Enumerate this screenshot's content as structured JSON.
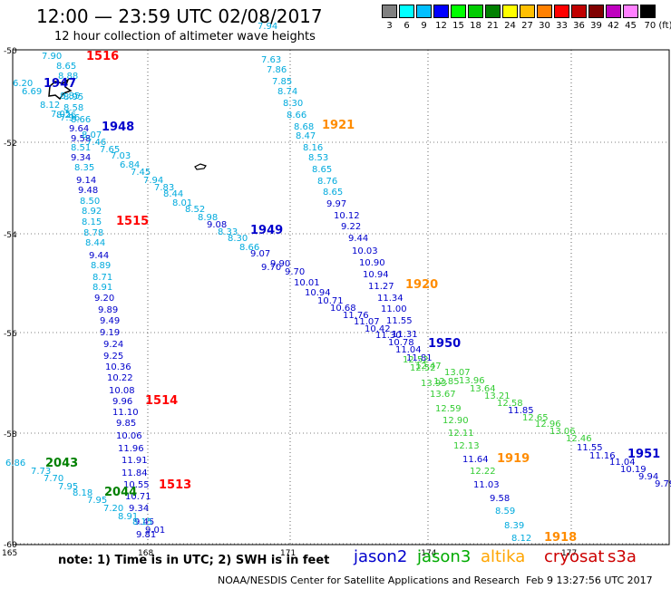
{
  "header": {
    "title": "12:00  — 23:59 UTC 02/08/2017",
    "subtitle": "12 hour collection of altimeter wave heights"
  },
  "colorbar": {
    "colors": [
      "#808080",
      "#00ffff",
      "#00bfff",
      "#0000ff",
      "#00ff00",
      "#00cc00",
      "#008000",
      "#ffff00",
      "#ffbf00",
      "#ff8000",
      "#ff0000",
      "#c00000",
      "#800000",
      "#bf00bf",
      "#ff80ff",
      "#000000"
    ],
    "labels": [
      "3",
      "6",
      "9",
      "12",
      "15",
      "18",
      "21",
      "24",
      "27",
      "30",
      "33",
      "36",
      "39",
      "42",
      "45",
      "70 (ft)"
    ]
  },
  "axes": {
    "lat_labels": [
      "-50",
      "-52",
      "-54",
      "-56",
      "-58",
      "-60"
    ],
    "lon_labels": [
      "165",
      "168",
      "171",
      "-174",
      "177"
    ]
  },
  "tracks": [
    {
      "label": "1516",
      "color": "#ff0000",
      "values": [
        "7.90",
        "8.65",
        "8.88",
        "6.20",
        "6.69",
        "8.85",
        "8.95",
        "8.12",
        "8.58",
        "7.05",
        "8.26",
        "7.96",
        "8.66",
        "9.64",
        "9.58"
      ]
    },
    {
      "label": "1947",
      "color": "#0000cc",
      "values": []
    },
    {
      "label": "1948",
      "color": "#0000cc",
      "values": [
        "8.07",
        "7.46",
        "7.65",
        "7.03",
        "6.84",
        "7.45",
        "7.94",
        "7.83",
        "8.44",
        "8.01",
        "8.52",
        "8.98",
        "9.08",
        "8.33",
        "8.30",
        "8.66"
      ]
    },
    {
      "label": "1515",
      "color": "#ff0000",
      "values": [
        "8.51",
        "9.34",
        "8.35",
        "9.14",
        "9.48",
        "8.50",
        "8.92",
        "8.15",
        "8.78",
        "8.44",
        "9.44",
        "8.89",
        "8.71",
        "8.91",
        "9.20",
        "9.89",
        "9.49",
        "9.19",
        "9.24",
        "9.25",
        "10.36",
        "10.22",
        "10.08",
        "9.96",
        "11.10",
        "9.85",
        "10.06",
        "11.96",
        "11.91",
        "11.84",
        "10.55",
        "10.71",
        "9.34",
        "9.45",
        "9.81"
      ]
    },
    {
      "label": "1514",
      "color": "#ff0000",
      "values": []
    },
    {
      "label": "1513",
      "color": "#ff0000",
      "values": [
        "9.01"
      ]
    },
    {
      "label": "1921",
      "color": "#ff8c00",
      "values": [
        "7.94",
        "7.63",
        "7.86",
        "7.85",
        "8.74",
        "8.30",
        "8.66",
        "8.68",
        "8.47",
        "8.16",
        "8.53",
        "8.65",
        "8.76",
        "8.65",
        "9.97",
        "10.12",
        "9.22",
        "9.44",
        "10.03",
        "10.90",
        "10.94",
        "11.27",
        "11.34",
        "11.00",
        "11.55",
        "11.31",
        "11.04",
        "11.81"
      ]
    },
    {
      "label": "1949",
      "color": "#0000cc",
      "values": [
        "9.07",
        "9.70",
        "9.90",
        "9.70",
        "10.01",
        "10.94",
        "10.71",
        "10.68",
        "11.76",
        "11.07",
        "10.42",
        "11.30",
        "10.78"
      ]
    },
    {
      "label": "1920",
      "color": "#ff8c00",
      "values": []
    },
    {
      "label": "1950",
      "color": "#0000cc",
      "values": [
        "12.52",
        "12.52",
        "12.47",
        "13.07",
        "12.85",
        "13.96",
        "13.64",
        "13.21",
        "12.58",
        "11.85",
        "12.65",
        "12.96",
        "13.06",
        "12.46",
        "11.55",
        "11.16",
        "11.04",
        "10.19",
        "9.94",
        "9.79"
      ]
    },
    {
      "label": "1951",
      "color": "#0000cc",
      "values": []
    },
    {
      "label": "1919",
      "color": "#ff8c00",
      "values": [
        "13.93",
        "13.67",
        "12.59",
        "12.90",
        "12.11",
        "12.13",
        "11.64",
        "12.22",
        "11.03",
        "9.58",
        "8.59",
        "8.39",
        "8.12"
      ]
    },
    {
      "label": "1918",
      "color": "#ff8c00",
      "values": []
    },
    {
      "label": "2043",
      "color": "#008000",
      "values": [
        "6.86",
        "7.73",
        "7.70",
        "7.95",
        "8.18",
        "7.95",
        "7.20",
        "8.91",
        "8.15"
      ]
    },
    {
      "label": "2044",
      "color": "#008000",
      "values": []
    }
  ],
  "footer": {
    "note": "note: 1) Time is in UTC; 2) SWH is in feet",
    "legend": [
      {
        "name": "jason2",
        "color": "#0000cc"
      },
      {
        "name": "jason3",
        "color": "#00aa00"
      },
      {
        "name": "altika",
        "color": "#ffa500"
      },
      {
        "name": "cryosat",
        "color": "#cc0000"
      },
      {
        "name": "s3a",
        "color": "#cc0000"
      }
    ],
    "credit": "NOAA/NESDIS Center for Satellite Applications and Research",
    "timestamp": "Feb  9 13:27:56 UTC 2017"
  }
}
